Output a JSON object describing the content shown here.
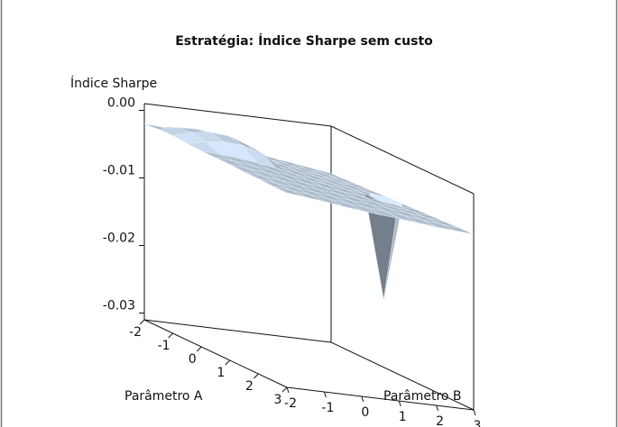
{
  "chart_data": {
    "type": "surface",
    "title": "Estratégia: Índice Sharpe sem custo",
    "x_label": "Parâmetro A",
    "y_label": "Parâmetro B",
    "z_label": "Índice Sharpe",
    "x": [
      -2,
      -1.5,
      -1,
      -0.5,
      0,
      0.5,
      1,
      1.5,
      2,
      2.5,
      3
    ],
    "y": [
      -2,
      -1.5,
      -1,
      -0.5,
      0,
      0.5,
      1,
      1.5,
      2,
      2.5,
      3
    ],
    "z": [
      [
        -0.002,
        -0.0022,
        -0.0026,
        -0.003,
        -0.0035,
        -0.004,
        -0.0044,
        -0.0048,
        -0.0052,
        -0.0056,
        -0.006
      ],
      [
        -0.0018,
        -0.0012,
        -0.0011,
        -0.0015,
        -0.0025,
        -0.0038,
        -0.0043,
        -0.0047,
        -0.0051,
        -0.0055,
        -0.0059
      ],
      [
        -0.0017,
        -0.0009,
        -0.0006,
        -0.0008,
        -0.0018,
        -0.0036,
        -0.0042,
        -0.0046,
        -0.005,
        -0.0054,
        -0.0058
      ],
      [
        -0.0019,
        -0.0013,
        -0.001,
        -0.0012,
        -0.002,
        -0.0037,
        -0.0041,
        -0.0045,
        -0.0049,
        -0.0053,
        -0.0057
      ],
      [
        -0.002,
        -0.0022,
        -0.0024,
        -0.0028,
        -0.0032,
        -0.0038,
        -0.0041,
        -0.0045,
        -0.0049,
        -0.0052,
        -0.0056
      ],
      [
        -0.002,
        -0.0022,
        -0.0025,
        -0.0029,
        -0.0033,
        -0.0037,
        -0.004,
        -0.0044,
        -0.0047,
        -0.02,
        -0.0055
      ],
      [
        -0.002,
        -0.0023,
        -0.0026,
        -0.003,
        -0.0034,
        -0.0037,
        -0.004,
        -0.0043,
        -0.0047,
        -0.0051,
        -0.0054
      ],
      [
        -0.0021,
        -0.0024,
        -0.0027,
        -0.0031,
        -0.0034,
        -0.0037,
        -0.004,
        -0.0043,
        -0.0046,
        -0.005,
        -0.0053
      ],
      [
        -0.0021,
        -0.0025,
        -0.0028,
        -0.0031,
        -0.0034,
        -0.0037,
        -0.0039,
        -0.0042,
        -0.0045,
        -0.0049,
        -0.0052
      ],
      [
        -0.0022,
        -0.0025,
        -0.0028,
        -0.0031,
        -0.0034,
        -0.0037,
        -0.0039,
        -0.0042,
        -0.0045,
        -0.0048,
        -0.0051
      ],
      [
        -0.0022,
        -0.0025,
        -0.0028,
        -0.0032,
        -0.0035,
        -0.0038,
        -0.004,
        -0.0043,
        -0.0046,
        -0.0048,
        -0.005
      ]
    ],
    "color": "#b4c4d6",
    "xlim": [
      -2,
      3
    ],
    "ylim": [
      -2,
      3
    ],
    "zlim": [
      -0.031,
      0.001
    ],
    "xticks": [
      -2,
      -1,
      0,
      1,
      2,
      3
    ],
    "yticks": [
      -2,
      -1,
      0,
      1,
      2,
      3
    ],
    "zticks": [
      {
        "value": 0,
        "label": "0.00"
      },
      {
        "value": -0.01,
        "label": "-0.01"
      },
      {
        "value": -0.02,
        "label": "-0.02"
      },
      {
        "value": -0.03,
        "label": "-0.03"
      }
    ]
  }
}
